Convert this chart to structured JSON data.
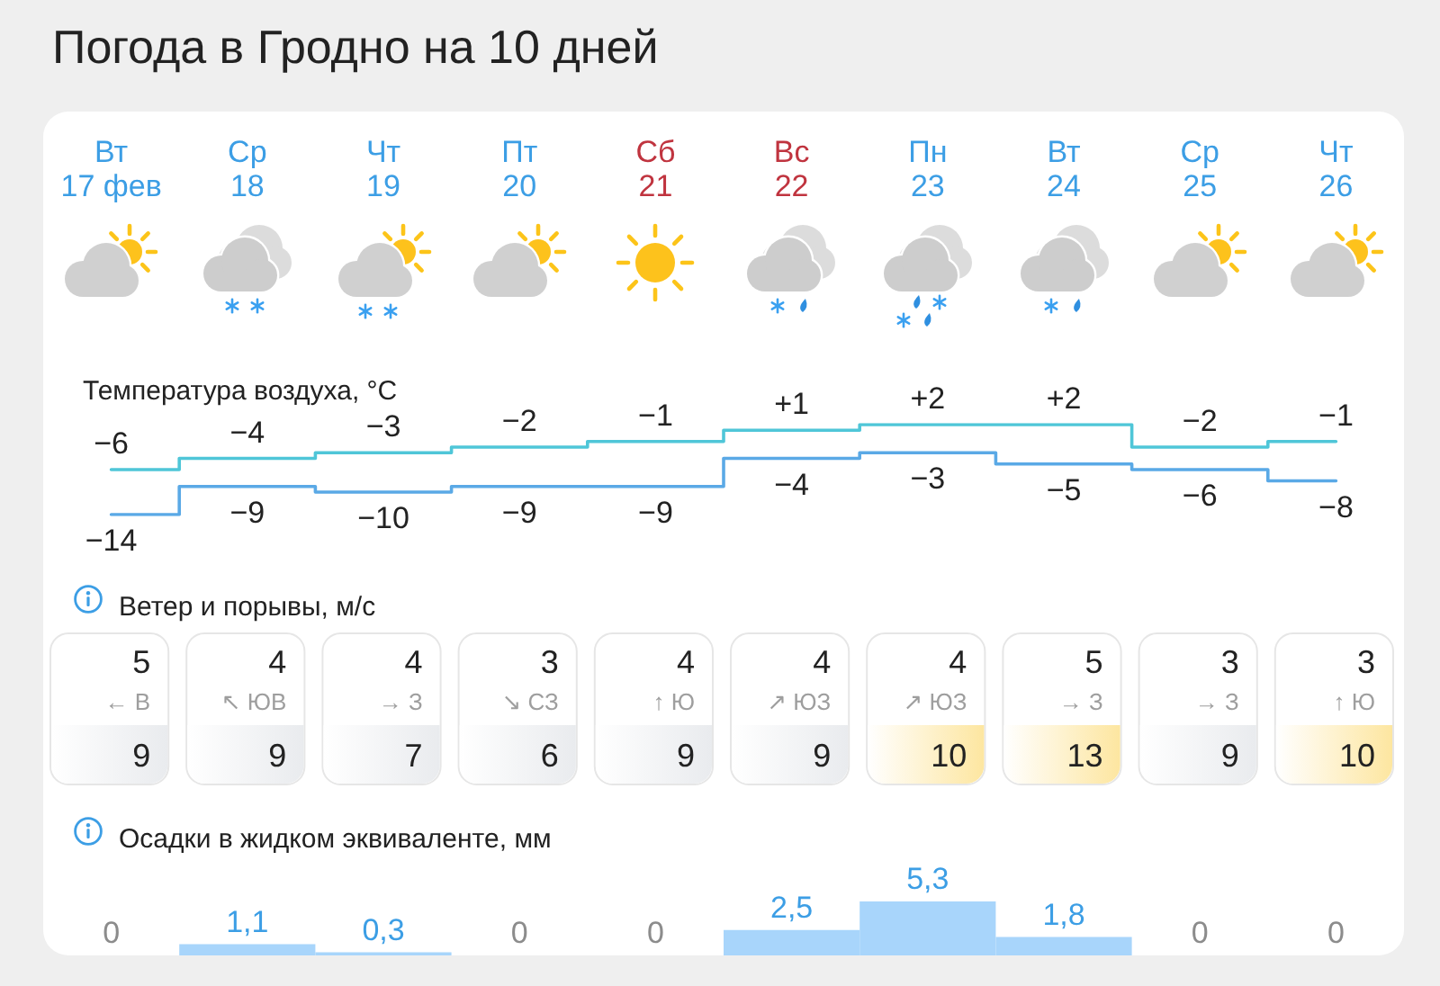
{
  "chart_data": [
    {
      "type": "step",
      "title": "Погода в Гродно на 10 дней",
      "subtitle": "Температура воздуха, °C",
      "categories": [
        "Вт\n17 фев",
        "Ср\n18",
        "Чт\n19",
        "Пт\n20",
        "Сб\n21",
        "Вс\n22",
        "Пн\n23",
        "Вт\n24",
        "Ср\n25",
        "Чт\n26"
      ],
      "marker": "none",
      "tick_labels": "x",
      "series": [
        {
          "color": "#4fc6d8",
          "values": [
            -6,
            -4,
            -3,
            -2,
            -1,
            1,
            2,
            2,
            -2,
            -1
          ],
          "value_labels": [
            "−6",
            "−4",
            "−3",
            "−2",
            "−1",
            "+1",
            "+2",
            "+2",
            "−2",
            "−1"
          ]
        },
        {
          "color": "#5aa9e6",
          "values": [
            -14,
            -9,
            -10,
            -9,
            -9,
            -4,
            -3,
            -5,
            -6,
            -8
          ],
          "value_labels": [
            "−14",
            "−9",
            "−10",
            "−9",
            "−9",
            "−4",
            "−3",
            "−5",
            "−6",
            "−8"
          ]
        }
      ]
    },
    {
      "type": "other",
      "title": "Ветер и порывы, м/с",
      "categories": [
        "← В",
        "↖ ЮВ",
        "→ З",
        "↘ СЗ",
        "↑ Ю",
        "↗ ЮЗ",
        "↗ ЮЗ",
        "→ З",
        "→ З",
        "↑ Ю"
      ],
      "series": [
        {
          "values": [
            5,
            4,
            4,
            3,
            4,
            4,
            4,
            5,
            3,
            3
          ]
        },
        {
          "values": [
            9,
            9,
            7,
            6,
            9,
            9,
            10,
            13,
            9,
            10
          ],
          "colors": [
            "#e9ebee",
            "#e9ebee",
            "#e9ebee",
            "#e9ebee",
            "#e9ebee",
            "#e9ebee",
            "#fde6a0",
            "#fde6a0",
            "#e9ebee",
            "#fde6a0"
          ]
        }
      ],
      "data_labels": true
    },
    {
      "type": "bar",
      "title": "Осадки в жидком эквиваленте, мм",
      "categories": [
        null,
        null,
        null,
        null,
        null,
        null,
        null,
        null,
        null,
        null
      ],
      "values": [
        0,
        1.1,
        0.3,
        0,
        0,
        2.5,
        5.3,
        1.8,
        0,
        0
      ],
      "value_labels": [
        "0",
        "1,1",
        "0,3",
        "0",
        "0",
        "2,5",
        "5,3",
        "1,8",
        "0",
        "0"
      ],
      "color": "#a8d5fb",
      "tick_labels": false
    }
  ]
}
